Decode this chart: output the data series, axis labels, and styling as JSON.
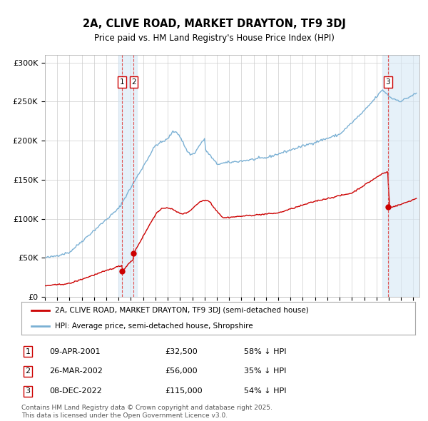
{
  "title_line1": "2A, CLIVE ROAD, MARKET DRAYTON, TF9 3DJ",
  "title_line2": "Price paid vs. HM Land Registry's House Price Index (HPI)",
  "hpi_color": "#7ab0d4",
  "price_color": "#cc0000",
  "background_color": "#ffffff",
  "grid_color": "#cccccc",
  "ylim": [
    0,
    310000
  ],
  "yticks": [
    0,
    50000,
    100000,
    150000,
    200000,
    250000,
    300000
  ],
  "ytick_labels": [
    "£0",
    "£50K",
    "£100K",
    "£150K",
    "£200K",
    "£250K",
    "£300K"
  ],
  "xlim_start": 1995.0,
  "xlim_end": 2025.5,
  "transactions": [
    {
      "num": 1,
      "date_x": 2001.27,
      "price": 32500
    },
    {
      "num": 2,
      "date_x": 2002.23,
      "price": 56000
    },
    {
      "num": 3,
      "date_x": 2022.93,
      "price": 115000
    }
  ],
  "span1_x0": 2001.0,
  "span1_x1": 2002.5,
  "span3_x0": 2022.5,
  "span3_x1": 2025.5,
  "legend_line1": "2A, CLIVE ROAD, MARKET DRAYTON, TF9 3DJ (semi-detached house)",
  "legend_line2": "HPI: Average price, semi-detached house, Shropshire",
  "footnote_line1": "Contains HM Land Registry data © Crown copyright and database right 2025.",
  "footnote_line2": "This data is licensed under the Open Government Licence v3.0.",
  "table_rows": [
    {
      "num": 1,
      "date": "09-APR-2001",
      "price": "£32,500",
      "pct": "58% ↓ HPI"
    },
    {
      "num": 2,
      "date": "26-MAR-2002",
      "price": "£56,000",
      "pct": "35% ↓ HPI"
    },
    {
      "num": 3,
      "date": "08-DEC-2022",
      "price": "£115,000",
      "pct": "54% ↓ HPI"
    }
  ]
}
